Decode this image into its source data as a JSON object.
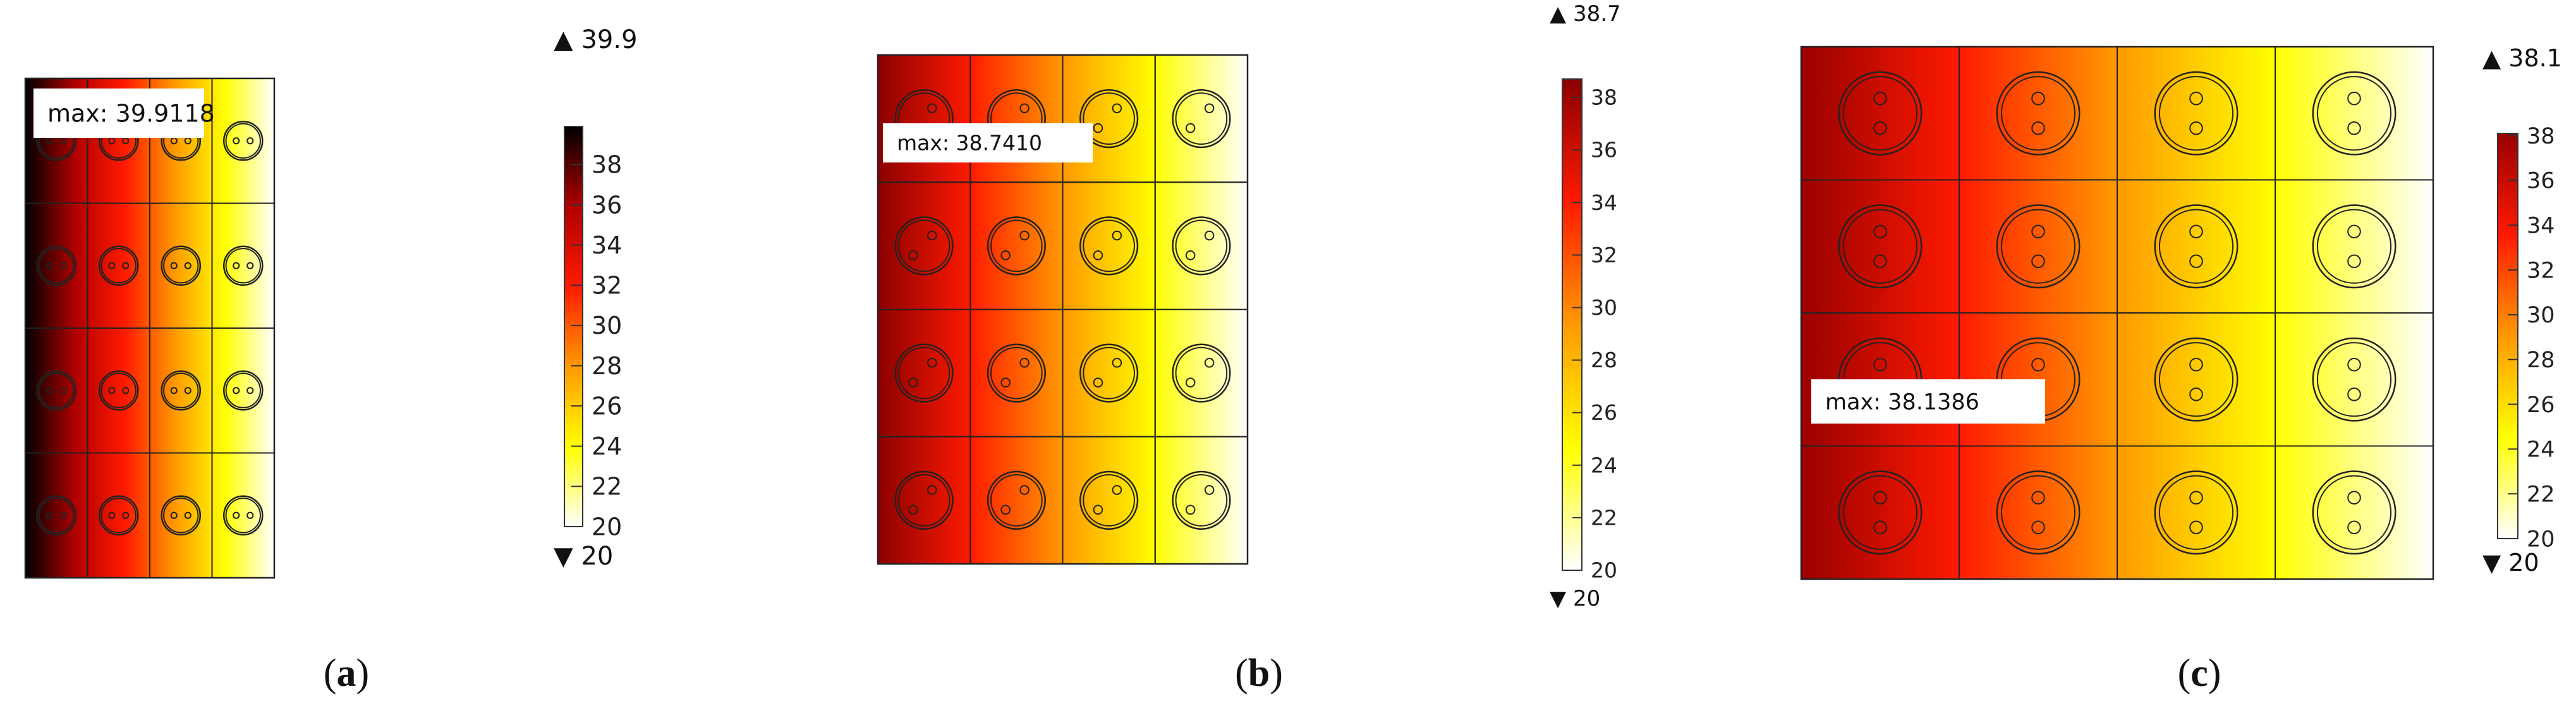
{
  "chart_data": [
    {
      "type": "heatmap",
      "panel_label": "a",
      "label_open": "(",
      "label_close": ")",
      "grid": {
        "rows": 4,
        "cols": 4
      },
      "cell_glyph": "circle with two small holes, side by side",
      "values_range": [
        20,
        39.9118
      ],
      "max_annotation": "max: 39.9118",
      "colorbar": {
        "colormap": [
          "#ffffff",
          "#ffff00",
          "#ff9900",
          "#ff1a00",
          "#b00000",
          "#000000"
        ],
        "min": 20,
        "max": 39.9,
        "ticks": [
          "20",
          "22",
          "24",
          "26",
          "28",
          "30",
          "32",
          "34",
          "36",
          "38"
        ],
        "top_marker": "39.9",
        "bottom_marker": "20",
        "marker_up": "▲",
        "marker_down": "▼"
      }
    },
    {
      "type": "heatmap",
      "panel_label": "b",
      "label_open": "(",
      "label_close": ")",
      "grid": {
        "rows": 4,
        "cols": 4
      },
      "cell_glyph": "circle with two small holes, diagonal",
      "values_range": [
        20,
        38.741
      ],
      "max_annotation": "max: 38.7410",
      "colorbar": {
        "colormap": [
          "#ffffff",
          "#ffff00",
          "#ff9900",
          "#ff1a00",
          "#8b0000"
        ],
        "min": 20,
        "max": 38.7,
        "ticks": [
          "20",
          "22",
          "24",
          "26",
          "28",
          "30",
          "32",
          "34",
          "36",
          "38"
        ],
        "top_marker": "38.7",
        "bottom_marker": "20",
        "marker_up": "▲",
        "marker_down": "▼"
      }
    },
    {
      "type": "heatmap",
      "panel_label": "c",
      "label_open": "(",
      "label_close": ")",
      "grid": {
        "rows": 4,
        "cols": 4
      },
      "cell_glyph": "circle with two small holes, vertical",
      "values_range": [
        20,
        38.1386
      ],
      "max_annotation": "max: 38.1386",
      "colorbar": {
        "colormap": [
          "#ffffff",
          "#ffff00",
          "#ff9900",
          "#ff1a00",
          "#990000"
        ],
        "min": 20,
        "max": 38.1,
        "ticks": [
          "20",
          "22",
          "24",
          "26",
          "28",
          "30",
          "32",
          "34",
          "36",
          "38"
        ],
        "top_marker": "38.1",
        "bottom_marker": "20",
        "marker_up": "▲",
        "marker_down": "▼"
      }
    }
  ]
}
